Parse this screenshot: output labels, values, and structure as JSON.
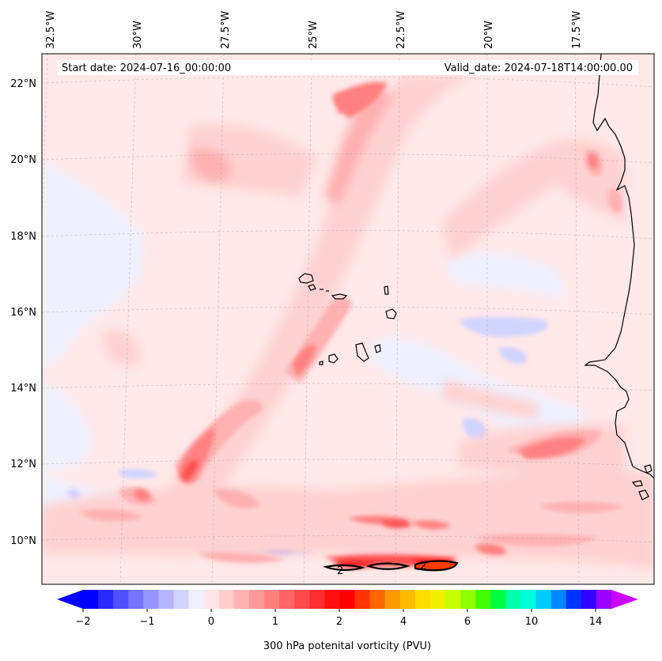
{
  "header": {
    "start_date": "Start date: 2024-07-16_00:00:00",
    "valid_date": "Valid_date: 2024-07-18T14:00:00.00"
  },
  "axes": {
    "lon_labels": [
      "32.5°W",
      "30°W",
      "27.5°W",
      "25°W",
      "22.5°W",
      "20°W",
      "17.5°W"
    ],
    "lat_labels": [
      "22°N",
      "20°N",
      "18°N",
      "16°N",
      "14°N",
      "12°N",
      "10°N"
    ]
  },
  "colorbar": {
    "label": "300 hPa potenital vorticity (PVU)",
    "tick_labels": [
      "−2",
      "−1",
      "0",
      "1",
      "2",
      "4",
      "6",
      "10",
      "14"
    ],
    "colors": [
      "#0000ff",
      "#2a2aff",
      "#5050ff",
      "#7373ff",
      "#9595ff",
      "#b4b4ff",
      "#d2d2ff",
      "#eeeeff",
      "#ffe6e6",
      "#ffcccc",
      "#ffb3b3",
      "#ff9999",
      "#ff7f7f",
      "#ff6565",
      "#ff4a4a",
      "#ff2e2e",
      "#ff1010",
      "#ff0000",
      "#ff3300",
      "#ff6600",
      "#ff9900",
      "#ffbb00",
      "#ffdd00",
      "#f0f000",
      "#c8ff00",
      "#90ff00",
      "#40ff00",
      "#00ff40",
      "#00ffaa",
      "#00ffdd",
      "#00ccff",
      "#0088ff",
      "#0033ff",
      "#3300ff",
      "#9900ff"
    ],
    "under_color": "#0000ff",
    "over_color": "#cc00ff"
  },
  "field_colors": {
    "background": "#ffe8e8",
    "neg_light": "#eef0ff",
    "neg_mid": "#d0d4ff",
    "neg_strong": "#8a8aff",
    "neg_max": "#3a3aff",
    "pos_1": "#ffd2d2",
    "pos_2": "#ffb0b0",
    "pos_3": "#ff8080",
    "pos_4": "#ff5050",
    "pos_5": "#ff1a1a",
    "pos_6": "#ff3c00"
  },
  "contour_labels": [
    "2",
    "2"
  ]
}
